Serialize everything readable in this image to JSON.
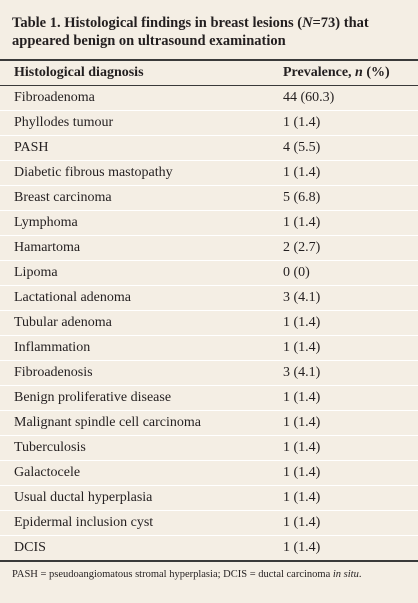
{
  "title": [
    "Table 1. Histological findings in breast lesions (",
    "N",
    "=73) that appeared benign on ultrasound examination"
  ],
  "table": {
    "header": [
      "Histological diagnosis",
      [
        "Prevalence, ",
        "n",
        " (%)"
      ]
    ],
    "rows": [
      [
        "Fibroadenoma",
        "44 (60.3)"
      ],
      [
        "Phyllodes tumour",
        "1 (1.4)"
      ],
      [
        "PASH",
        "4 (5.5)"
      ],
      [
        "Diabetic fibrous mastopathy",
        "1 (1.4)"
      ],
      [
        "Breast carcinoma",
        "5 (6.8)"
      ],
      [
        "Lymphoma",
        "1 (1.4)"
      ],
      [
        "Hamartoma",
        "2 (2.7)"
      ],
      [
        "Lipoma",
        "0 (0)"
      ],
      [
        "Lactational adenoma",
        "3 (4.1)"
      ],
      [
        "Tubular adenoma",
        "1 (1.4)"
      ],
      [
        "Inflammation",
        "1 (1.4)"
      ],
      [
        "Fibroadenosis",
        "3 (4.1)"
      ],
      [
        "Benign proliferative disease",
        "1 (1.4)"
      ],
      [
        "Malignant spindle cell carcinoma",
        "1 (1.4)"
      ],
      [
        "Tuberculosis",
        "1 (1.4)"
      ],
      [
        "Galactocele",
        "1 (1.4)"
      ],
      [
        "Usual ductal hyperplasia",
        "1 (1.4)"
      ],
      [
        "Epidermal inclusion cyst",
        "1 (1.4)"
      ],
      [
        "DCIS",
        "1 (1.4)"
      ]
    ]
  },
  "footnote": [
    "PASH = pseudoangiomatous stromal hyperplasia; DCIS = ductal carcinoma ",
    "in situ",
    "."
  ]
}
